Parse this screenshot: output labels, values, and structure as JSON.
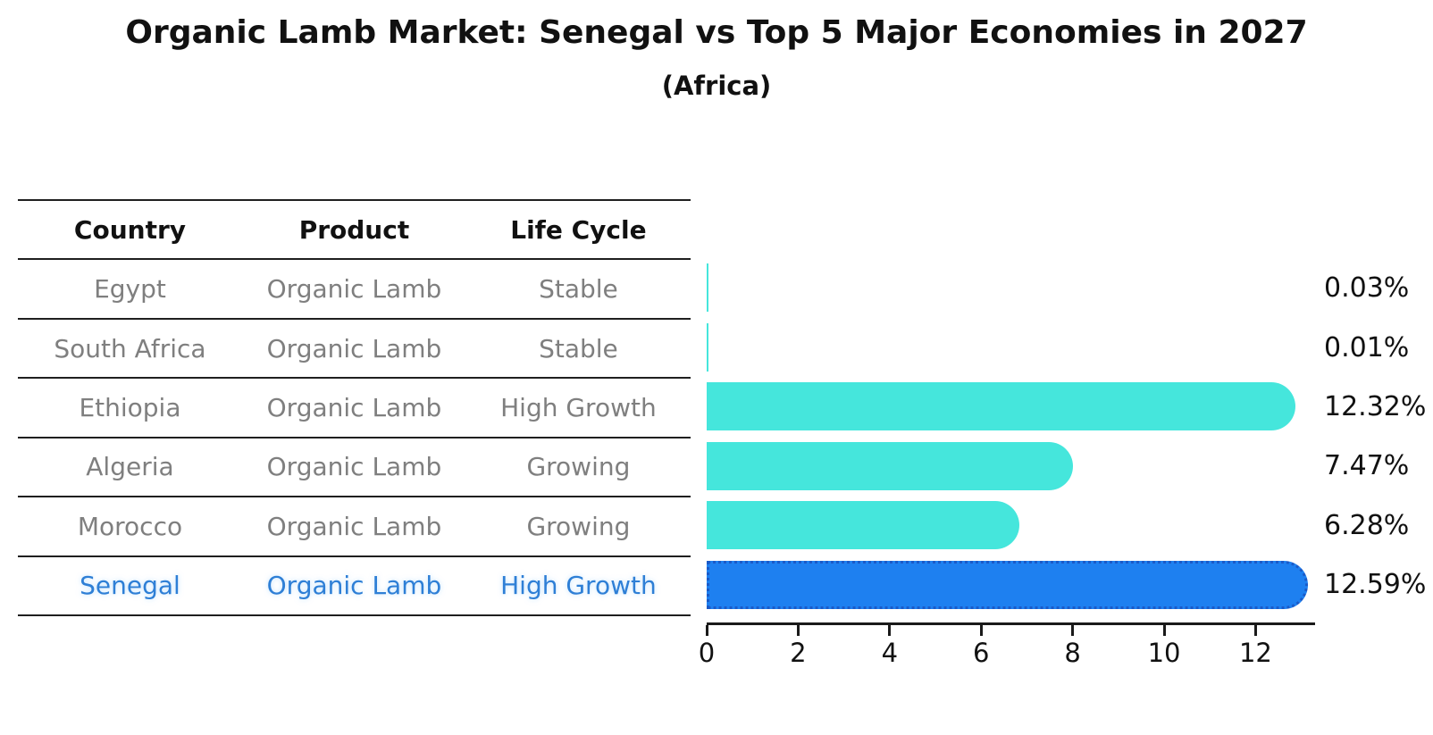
{
  "title": "Organic Lamb Market: Senegal vs Top 5 Major Economies in 2027",
  "subtitle": "(Africa)",
  "table": {
    "headers": [
      "Country",
      "Product",
      "Life Cycle"
    ],
    "rows": [
      {
        "country": "Egypt",
        "product": "Organic Lamb",
        "life_cycle": "Stable",
        "highlight": false
      },
      {
        "country": "South Africa",
        "product": "Organic Lamb",
        "life_cycle": "Stable",
        "highlight": false
      },
      {
        "country": "Ethiopia",
        "product": "Organic Lamb",
        "life_cycle": "High Growth",
        "highlight": false
      },
      {
        "country": "Algeria",
        "product": "Organic Lamb",
        "life_cycle": "Growing",
        "highlight": false
      },
      {
        "country": "Morocco",
        "product": "Organic Lamb",
        "life_cycle": "Growing",
        "highlight": false
      },
      {
        "country": "Senegal",
        "product": "Organic Lamb",
        "life_cycle": "High Growth",
        "highlight": true
      }
    ]
  },
  "chart_data": {
    "type": "bar",
    "orientation": "horizontal",
    "title": "Organic Lamb Market: Senegal vs Top 5 Major Economies in 2027",
    "subtitle": "(Africa)",
    "categories": [
      "Egypt",
      "South Africa",
      "Ethiopia",
      "Algeria",
      "Morocco",
      "Senegal"
    ],
    "values": [
      0.03,
      0.01,
      12.32,
      7.47,
      6.28,
      12.59
    ],
    "value_labels": [
      "0.03%",
      "0.01%",
      "12.32%",
      "7.47%",
      "6.28%",
      "12.59%"
    ],
    "unit": "percent",
    "xlim": [
      0,
      13.3
    ],
    "xticks": [
      0,
      2,
      4,
      6,
      8,
      10,
      12
    ],
    "grid": false,
    "legend": false,
    "highlight_index": 5,
    "bar_color": "#45E6DC",
    "highlight_color": "#1E80F0",
    "highlight_border_color": "#1A5AC8"
  },
  "colors": {
    "bar": "#45E6DC",
    "highlight_bar": "#1E80F0",
    "highlight_border": "#1A5AC8",
    "highlight_text": "#2E7FD6",
    "table_text": "#7f7f7f",
    "header_text": "#111111",
    "axis": "#1a1a1a"
  }
}
